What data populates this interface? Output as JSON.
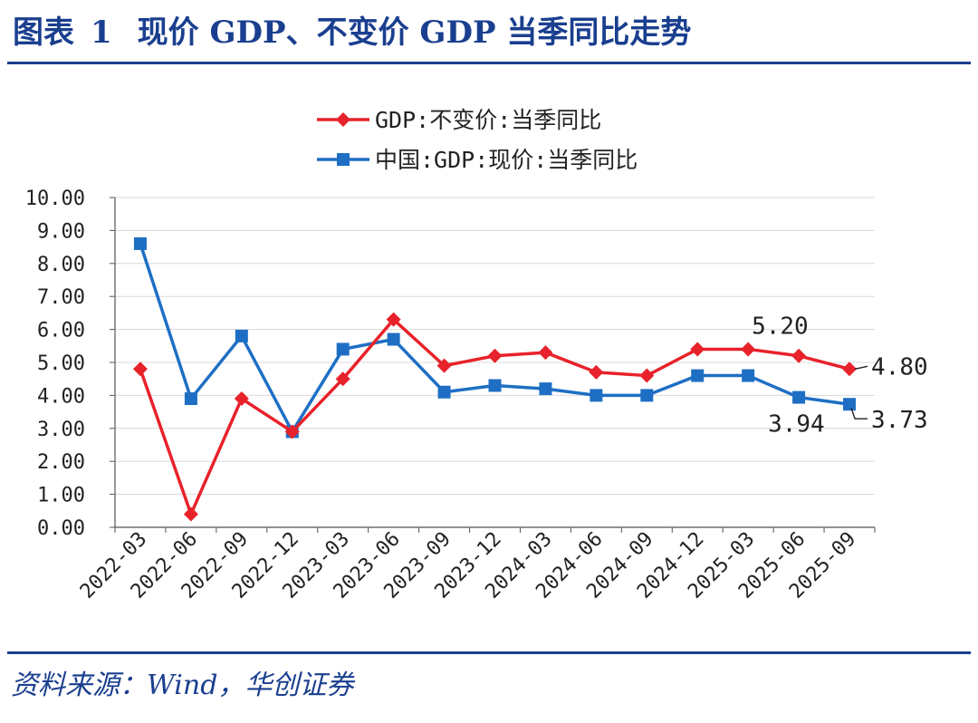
{
  "header": {
    "label": "图表",
    "number": "1",
    "title": "现价 GDP、不变价 GDP 当季同比走势"
  },
  "footer": {
    "source": "资料来源：Wind，华创证券"
  },
  "colors": {
    "accent": "#1a3f8f",
    "series_red": "#e8222a",
    "series_blue": "#1e6fc4"
  },
  "chart_data": {
    "type": "line",
    "title": "",
    "xlabel": "",
    "ylabel": "",
    "ylim": [
      0,
      10
    ],
    "y_ticks": [
      "0.00",
      "1.00",
      "2.00",
      "3.00",
      "4.00",
      "5.00",
      "6.00",
      "7.00",
      "8.00",
      "9.00",
      "10.00"
    ],
    "categories": [
      "2022-03",
      "2022-06",
      "2022-09",
      "2022-12",
      "2023-03",
      "2023-06",
      "2023-09",
      "2023-12",
      "2024-03",
      "2024-06",
      "2024-09",
      "2024-12",
      "2025-03",
      "2025-06",
      "2025-09"
    ],
    "grid": true,
    "legend_position": "top-center",
    "series": [
      {
        "name": "GDP:不变价:当季同比",
        "color": "#e8222a",
        "marker": "diamond",
        "values": [
          4.8,
          0.4,
          3.9,
          2.9,
          4.5,
          6.3,
          4.9,
          5.2,
          5.3,
          4.7,
          4.6,
          5.4,
          5.4,
          5.2,
          4.8
        ]
      },
      {
        "name": "中国:GDP:现价:当季同比",
        "color": "#1e6fc4",
        "marker": "square",
        "values": [
          8.6,
          3.9,
          5.8,
          2.9,
          5.4,
          5.7,
          4.1,
          4.3,
          4.2,
          4.0,
          4.0,
          4.6,
          4.6,
          3.94,
          3.73
        ]
      }
    ],
    "annotations": [
      {
        "text": "5.20"
      },
      {
        "text": "4.80"
      },
      {
        "text": "3.94"
      },
      {
        "text": "3.73"
      }
    ]
  }
}
